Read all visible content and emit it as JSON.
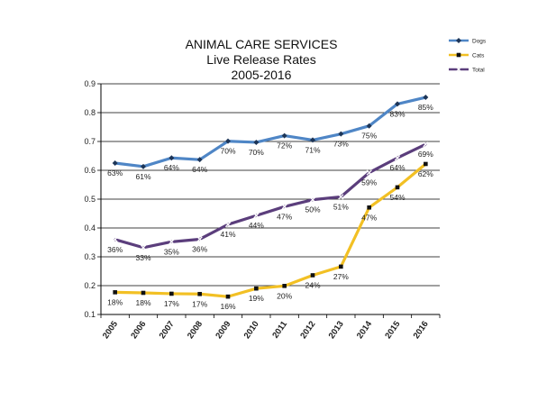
{
  "chart_data": {
    "type": "line",
    "title": [
      "ANIMAL CARE SERVICES",
      "Live Release Rates",
      "2005-2016"
    ],
    "xlabel": "",
    "ylabel": "",
    "ylim": [
      0.1,
      0.9
    ],
    "yticks": [
      "0.1",
      "0.2",
      "0.3",
      "0.4",
      "0.5",
      "0.6",
      "0.7",
      "0.8",
      "0.9"
    ],
    "ytick_values": [
      0.1,
      0.2,
      0.3,
      0.4,
      0.5,
      0.6,
      0.7,
      0.8,
      0.9
    ],
    "grid": "horizontal",
    "legend_position": "top-right",
    "categories": [
      "2005",
      "2006",
      "2007",
      "2008",
      "2009",
      "2010",
      "2011",
      "2012",
      "2013",
      "2014",
      "2015",
      "2016"
    ],
    "series": [
      {
        "name": "Dogs",
        "color": "#4f86c6",
        "marker": "diamond",
        "values": [
          0.625,
          0.613,
          0.643,
          0.637,
          0.701,
          0.697,
          0.72,
          0.705,
          0.726,
          0.754,
          0.83,
          0.853
        ],
        "labels": [
          "63%",
          "61%",
          "64%",
          "64%",
          "70%",
          "70%",
          "72%",
          "71%",
          "73%",
          "75%",
          "83%",
          "85%"
        ]
      },
      {
        "name": "Cats",
        "color": "#f2c024",
        "marker": "square",
        "values": [
          0.177,
          0.175,
          0.172,
          0.171,
          0.162,
          0.19,
          0.199,
          0.236,
          0.266,
          0.471,
          0.541,
          0.622
        ],
        "labels": [
          "18%",
          "18%",
          "17%",
          "17%",
          "16%",
          "19%",
          "20%",
          "24%",
          "27%",
          "47%",
          "54%",
          "62%"
        ]
      },
      {
        "name": "Total",
        "color": "#5b3e7c",
        "marker": "x",
        "values": [
          0.36,
          0.332,
          0.352,
          0.361,
          0.412,
          0.443,
          0.474,
          0.498,
          0.508,
          0.592,
          0.643,
          0.69
        ],
        "labels": [
          "36%",
          "33%",
          "35%",
          "36%",
          "41%",
          "44%",
          "47%",
          "50%",
          "51%",
          "59%",
          "64%",
          "69%"
        ]
      }
    ]
  }
}
